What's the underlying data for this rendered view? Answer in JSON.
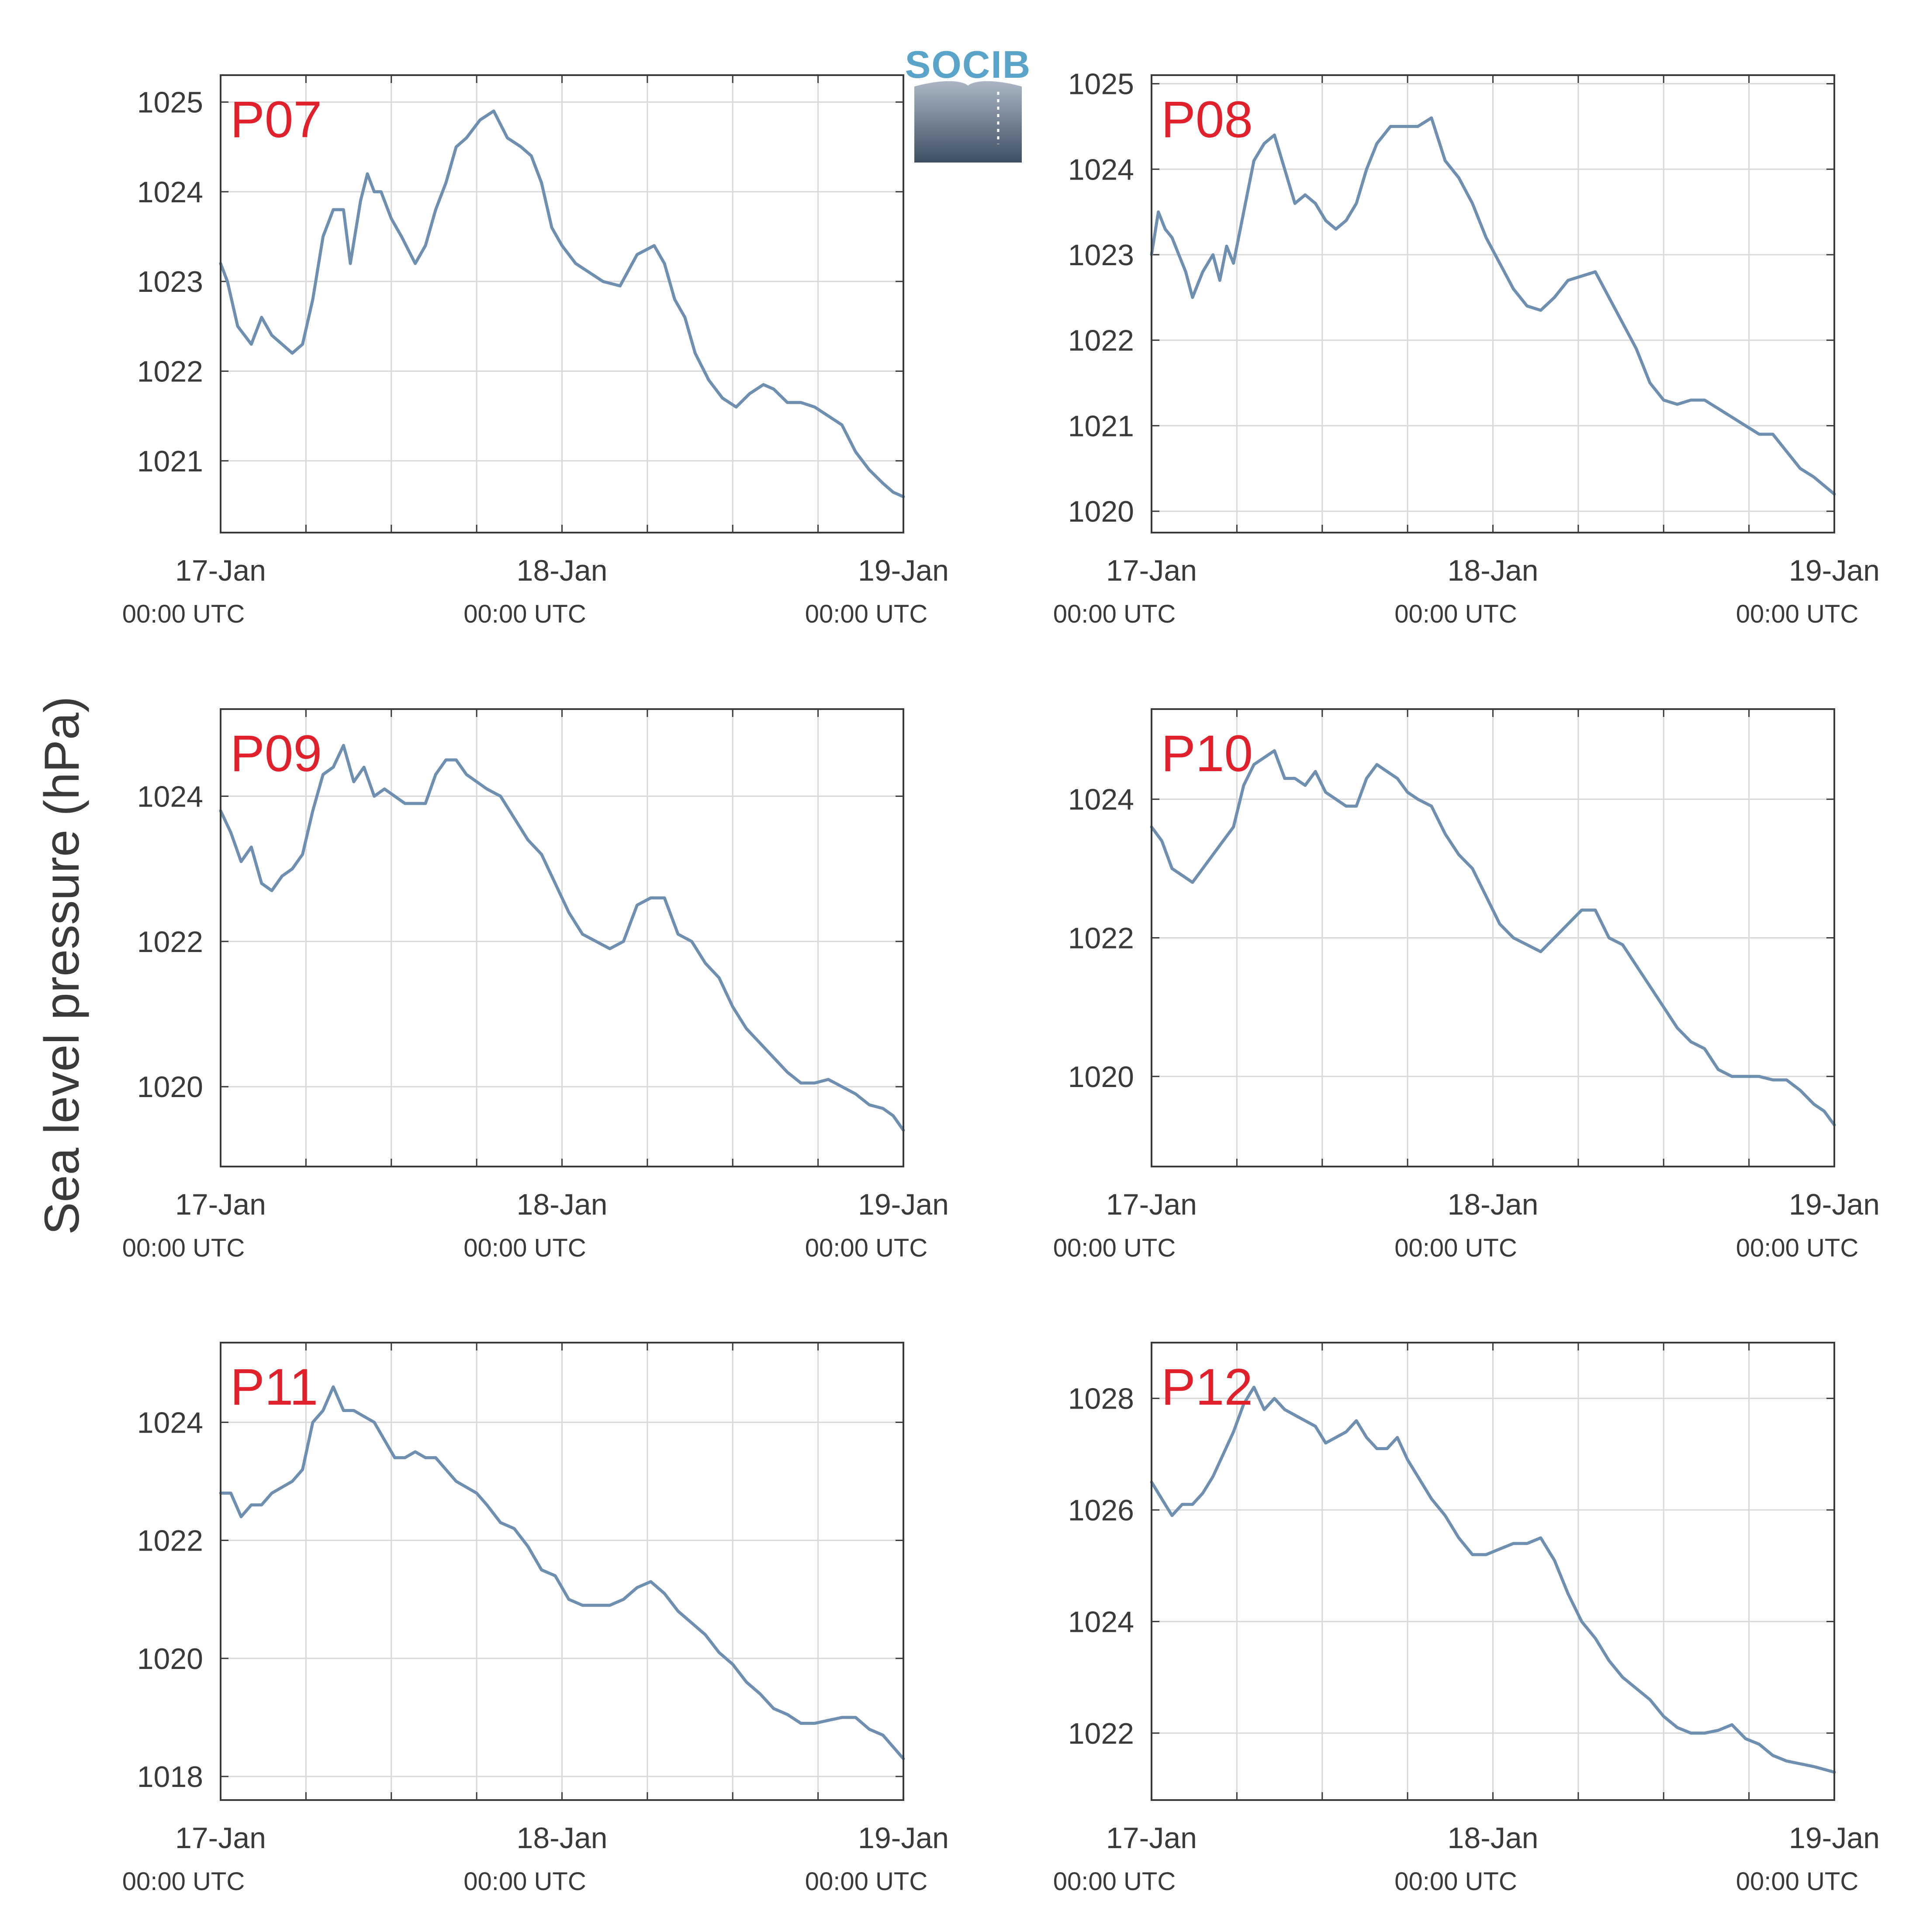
{
  "colors": {
    "line": "#6f8fb0",
    "panel_label": "#e0212b",
    "grid": "#d9d9d9",
    "axis": "#3a3a3a",
    "text": "#3a3a3a",
    "logo_text": "#5ba4c9"
  },
  "figure": {
    "ylabel": "Sea level pressure (hPa)",
    "logo_text": "SOCIB"
  },
  "chart_data": [
    {
      "type": "line",
      "panel_label": "P07",
      "x_unit": "days since 17-Jan 00:00 UTC",
      "xlim": [
        0,
        2
      ],
      "x_ticks": [
        {
          "date": "17-Jan",
          "time": "00:00 UTC"
        },
        {
          "date": "18-Jan",
          "time": "00:00 UTC"
        },
        {
          "date": "19-Jan",
          "time": "00:00 UTC"
        }
      ],
      "ylim": [
        1020.2,
        1025.3
      ],
      "yticks": [
        1021,
        1022,
        1023,
        1024,
        1025
      ],
      "grid": true,
      "x": [
        0,
        0.02,
        0.05,
        0.09,
        0.12,
        0.15,
        0.18,
        0.21,
        0.24,
        0.27,
        0.3,
        0.33,
        0.36,
        0.38,
        0.41,
        0.43,
        0.45,
        0.47,
        0.5,
        0.53,
        0.57,
        0.6,
        0.63,
        0.66,
        0.69,
        0.72,
        0.76,
        0.8,
        0.84,
        0.88,
        0.91,
        0.94,
        0.97,
        1.0,
        1.04,
        1.08,
        1.12,
        1.17,
        1.22,
        1.27,
        1.3,
        1.33,
        1.36,
        1.39,
        1.43,
        1.47,
        1.51,
        1.55,
        1.59,
        1.62,
        1.66,
        1.7,
        1.74,
        1.78,
        1.82,
        1.86,
        1.9,
        1.94,
        1.97,
        2.0
      ],
      "y": [
        1023.2,
        1023.0,
        1022.5,
        1022.3,
        1022.6,
        1022.4,
        1022.3,
        1022.2,
        1022.3,
        1022.8,
        1023.5,
        1023.8,
        1023.8,
        1023.2,
        1023.9,
        1024.2,
        1024.0,
        1024.0,
        1023.7,
        1023.5,
        1023.2,
        1023.4,
        1023.8,
        1024.1,
        1024.5,
        1024.6,
        1024.8,
        1024.9,
        1024.6,
        1024.5,
        1024.4,
        1024.1,
        1023.6,
        1023.4,
        1023.2,
        1023.1,
        1023.0,
        1022.95,
        1023.3,
        1023.4,
        1023.2,
        1022.8,
        1022.6,
        1022.2,
        1021.9,
        1021.7,
        1021.6,
        1021.75,
        1021.85,
        1021.8,
        1021.65,
        1021.65,
        1021.6,
        1021.5,
        1021.4,
        1021.1,
        1020.9,
        1020.75,
        1020.65,
        1020.6
      ]
    },
    {
      "type": "line",
      "panel_label": "P08",
      "x_unit": "days since 17-Jan 00:00 UTC",
      "xlim": [
        0,
        2
      ],
      "x_ticks": [
        {
          "date": "17-Jan",
          "time": "00:00 UTC"
        },
        {
          "date": "18-Jan",
          "time": "00:00 UTC"
        },
        {
          "date": "19-Jan",
          "time": "00:00 UTC"
        }
      ],
      "ylim": [
        1019.75,
        1025.1
      ],
      "yticks": [
        1020,
        1021,
        1022,
        1023,
        1024,
        1025
      ],
      "grid": true,
      "x": [
        0,
        0.02,
        0.04,
        0.06,
        0.08,
        0.1,
        0.12,
        0.15,
        0.18,
        0.2,
        0.22,
        0.24,
        0.27,
        0.3,
        0.33,
        0.36,
        0.39,
        0.42,
        0.45,
        0.48,
        0.51,
        0.54,
        0.57,
        0.6,
        0.63,
        0.66,
        0.7,
        0.74,
        0.78,
        0.82,
        0.86,
        0.9,
        0.94,
        0.98,
        1.02,
        1.06,
        1.1,
        1.14,
        1.18,
        1.22,
        1.26,
        1.3,
        1.34,
        1.38,
        1.42,
        1.46,
        1.5,
        1.54,
        1.58,
        1.62,
        1.66,
        1.7,
        1.74,
        1.78,
        1.82,
        1.86,
        1.9,
        1.94,
        1.97,
        2.0
      ],
      "y": [
        1023.0,
        1023.5,
        1023.3,
        1023.2,
        1023.0,
        1022.8,
        1022.5,
        1022.8,
        1023.0,
        1022.7,
        1023.1,
        1022.9,
        1023.5,
        1024.1,
        1024.3,
        1024.4,
        1024.0,
        1023.6,
        1023.7,
        1023.6,
        1023.4,
        1023.3,
        1023.4,
        1023.6,
        1024.0,
        1024.3,
        1024.5,
        1024.5,
        1024.5,
        1024.6,
        1024.1,
        1023.9,
        1023.6,
        1023.2,
        1022.9,
        1022.6,
        1022.4,
        1022.35,
        1022.5,
        1022.7,
        1022.75,
        1022.8,
        1022.5,
        1022.2,
        1021.9,
        1021.5,
        1021.3,
        1021.25,
        1021.3,
        1021.3,
        1021.2,
        1021.1,
        1021.0,
        1020.9,
        1020.9,
        1020.7,
        1020.5,
        1020.4,
        1020.3,
        1020.2
      ]
    },
    {
      "type": "line",
      "panel_label": "P09",
      "x_unit": "days since 17-Jan 00:00 UTC",
      "xlim": [
        0,
        2
      ],
      "x_ticks": [
        {
          "date": "17-Jan",
          "time": "00:00 UTC"
        },
        {
          "date": "18-Jan",
          "time": "00:00 UTC"
        },
        {
          "date": "19-Jan",
          "time": "00:00 UTC"
        }
      ],
      "ylim": [
        1018.9,
        1025.2
      ],
      "yticks": [
        1020,
        1022,
        1024
      ],
      "grid": true,
      "x": [
        0,
        0.03,
        0.06,
        0.09,
        0.12,
        0.15,
        0.18,
        0.21,
        0.24,
        0.27,
        0.3,
        0.33,
        0.36,
        0.39,
        0.42,
        0.45,
        0.48,
        0.51,
        0.54,
        0.57,
        0.6,
        0.63,
        0.66,
        0.69,
        0.72,
        0.75,
        0.78,
        0.82,
        0.86,
        0.9,
        0.94,
        0.98,
        1.02,
        1.06,
        1.1,
        1.14,
        1.18,
        1.22,
        1.26,
        1.3,
        1.34,
        1.38,
        1.42,
        1.46,
        1.5,
        1.54,
        1.58,
        1.62,
        1.66,
        1.7,
        1.74,
        1.78,
        1.82,
        1.86,
        1.9,
        1.94,
        1.97,
        2.0
      ],
      "y": [
        1023.8,
        1023.5,
        1023.1,
        1023.3,
        1022.8,
        1022.7,
        1022.9,
        1023.0,
        1023.2,
        1023.8,
        1024.3,
        1024.4,
        1024.7,
        1024.2,
        1024.4,
        1024.0,
        1024.1,
        1024.0,
        1023.9,
        1023.9,
        1023.9,
        1024.3,
        1024.5,
        1024.5,
        1024.3,
        1024.2,
        1024.1,
        1024.0,
        1023.7,
        1023.4,
        1023.2,
        1022.8,
        1022.4,
        1022.1,
        1022.0,
        1021.9,
        1022.0,
        1022.5,
        1022.6,
        1022.6,
        1022.1,
        1022.0,
        1021.7,
        1021.5,
        1021.1,
        1020.8,
        1020.6,
        1020.4,
        1020.2,
        1020.05,
        1020.05,
        1020.1,
        1020.0,
        1019.9,
        1019.75,
        1019.7,
        1019.6,
        1019.4
      ]
    },
    {
      "type": "line",
      "panel_label": "P10",
      "x_unit": "days since 17-Jan 00:00 UTC",
      "xlim": [
        0,
        2
      ],
      "x_ticks": [
        {
          "date": "17-Jan",
          "time": "00:00 UTC"
        },
        {
          "date": "18-Jan",
          "time": "00:00 UTC"
        },
        {
          "date": "19-Jan",
          "time": "00:00 UTC"
        }
      ],
      "ylim": [
        1018.7,
        1025.3
      ],
      "yticks": [
        1020,
        1022,
        1024
      ],
      "grid": true,
      "x": [
        0,
        0.03,
        0.06,
        0.09,
        0.12,
        0.15,
        0.18,
        0.21,
        0.24,
        0.27,
        0.3,
        0.33,
        0.36,
        0.39,
        0.42,
        0.45,
        0.48,
        0.51,
        0.54,
        0.57,
        0.6,
        0.63,
        0.66,
        0.69,
        0.72,
        0.75,
        0.78,
        0.82,
        0.86,
        0.9,
        0.94,
        0.98,
        1.02,
        1.06,
        1.1,
        1.14,
        1.18,
        1.22,
        1.26,
        1.3,
        1.34,
        1.38,
        1.42,
        1.46,
        1.5,
        1.54,
        1.58,
        1.62,
        1.66,
        1.7,
        1.74,
        1.78,
        1.82,
        1.86,
        1.9,
        1.94,
        1.97,
        2.0
      ],
      "y": [
        1023.6,
        1023.4,
        1023.0,
        1022.9,
        1022.8,
        1023.0,
        1023.2,
        1023.4,
        1023.6,
        1024.2,
        1024.5,
        1024.6,
        1024.7,
        1024.3,
        1024.3,
        1024.2,
        1024.4,
        1024.1,
        1024.0,
        1023.9,
        1023.9,
        1024.3,
        1024.5,
        1024.4,
        1024.3,
        1024.1,
        1024.0,
        1023.9,
        1023.5,
        1023.2,
        1023.0,
        1022.6,
        1022.2,
        1022.0,
        1021.9,
        1021.8,
        1022.0,
        1022.2,
        1022.4,
        1022.4,
        1022.0,
        1021.9,
        1021.6,
        1021.3,
        1021.0,
        1020.7,
        1020.5,
        1020.4,
        1020.1,
        1020.0,
        1020.0,
        1020.0,
        1019.95,
        1019.95,
        1019.8,
        1019.6,
        1019.5,
        1019.3
      ]
    },
    {
      "type": "line",
      "panel_label": "P11",
      "x_unit": "days since 17-Jan 00:00 UTC",
      "xlim": [
        0,
        2
      ],
      "x_ticks": [
        {
          "date": "17-Jan",
          "time": "00:00 UTC"
        },
        {
          "date": "18-Jan",
          "time": "00:00 UTC"
        },
        {
          "date": "19-Jan",
          "time": "00:00 UTC"
        }
      ],
      "ylim": [
        1017.6,
        1025.35
      ],
      "yticks": [
        1018,
        1020,
        1022,
        1024
      ],
      "grid": true,
      "x": [
        0,
        0.03,
        0.06,
        0.09,
        0.12,
        0.15,
        0.18,
        0.21,
        0.24,
        0.27,
        0.3,
        0.33,
        0.36,
        0.39,
        0.42,
        0.45,
        0.48,
        0.51,
        0.54,
        0.57,
        0.6,
        0.63,
        0.66,
        0.69,
        0.72,
        0.75,
        0.78,
        0.82,
        0.86,
        0.9,
        0.94,
        0.98,
        1.02,
        1.06,
        1.1,
        1.14,
        1.18,
        1.22,
        1.26,
        1.3,
        1.34,
        1.38,
        1.42,
        1.46,
        1.5,
        1.54,
        1.58,
        1.62,
        1.66,
        1.7,
        1.74,
        1.78,
        1.82,
        1.86,
        1.9,
        1.94,
        1.97,
        2.0
      ],
      "y": [
        1022.8,
        1022.8,
        1022.4,
        1022.6,
        1022.6,
        1022.8,
        1022.9,
        1023.0,
        1023.2,
        1024.0,
        1024.2,
        1024.6,
        1024.2,
        1024.2,
        1024.1,
        1024.0,
        1023.7,
        1023.4,
        1023.4,
        1023.5,
        1023.4,
        1023.4,
        1023.2,
        1023.0,
        1022.9,
        1022.8,
        1022.6,
        1022.3,
        1022.2,
        1021.9,
        1021.5,
        1021.4,
        1021.0,
        1020.9,
        1020.9,
        1020.9,
        1021.0,
        1021.2,
        1021.3,
        1021.1,
        1020.8,
        1020.6,
        1020.4,
        1020.1,
        1019.9,
        1019.6,
        1019.4,
        1019.15,
        1019.05,
        1018.9,
        1018.9,
        1018.95,
        1019.0,
        1019.0,
        1018.8,
        1018.7,
        1018.5,
        1018.3
      ]
    },
    {
      "type": "line",
      "panel_label": "P12",
      "x_unit": "days since 17-Jan 00:00 UTC",
      "xlim": [
        0,
        2
      ],
      "x_ticks": [
        {
          "date": "17-Jan",
          "time": "00:00 UTC"
        },
        {
          "date": "18-Jan",
          "time": "00:00 UTC"
        },
        {
          "date": "19-Jan",
          "time": "00:00 UTC"
        }
      ],
      "ylim": [
        1020.8,
        1029.0
      ],
      "yticks": [
        1022,
        1024,
        1026,
        1028
      ],
      "grid": true,
      "x": [
        0,
        0.03,
        0.06,
        0.09,
        0.12,
        0.15,
        0.18,
        0.21,
        0.24,
        0.27,
        0.3,
        0.33,
        0.36,
        0.39,
        0.42,
        0.45,
        0.48,
        0.51,
        0.54,
        0.57,
        0.6,
        0.63,
        0.66,
        0.69,
        0.72,
        0.75,
        0.78,
        0.82,
        0.86,
        0.9,
        0.94,
        0.98,
        1.02,
        1.06,
        1.1,
        1.14,
        1.18,
        1.22,
        1.26,
        1.3,
        1.34,
        1.38,
        1.42,
        1.46,
        1.5,
        1.54,
        1.58,
        1.62,
        1.66,
        1.7,
        1.74,
        1.78,
        1.82,
        1.86,
        1.9,
        1.94,
        1.97,
        2.0
      ],
      "y": [
        1026.5,
        1026.2,
        1025.9,
        1026.1,
        1026.1,
        1026.3,
        1026.6,
        1027.0,
        1027.4,
        1027.9,
        1028.2,
        1027.8,
        1028.0,
        1027.8,
        1027.7,
        1027.6,
        1027.5,
        1027.2,
        1027.3,
        1027.4,
        1027.6,
        1027.3,
        1027.1,
        1027.1,
        1027.3,
        1026.9,
        1026.6,
        1026.2,
        1025.9,
        1025.5,
        1025.2,
        1025.2,
        1025.3,
        1025.4,
        1025.4,
        1025.5,
        1025.1,
        1024.5,
        1024.0,
        1023.7,
        1023.3,
        1023.0,
        1022.8,
        1022.6,
        1022.3,
        1022.1,
        1022.0,
        1022.0,
        1022.05,
        1022.15,
        1021.9,
        1021.8,
        1021.6,
        1021.5,
        1021.45,
        1021.4,
        1021.35,
        1021.3
      ]
    }
  ]
}
